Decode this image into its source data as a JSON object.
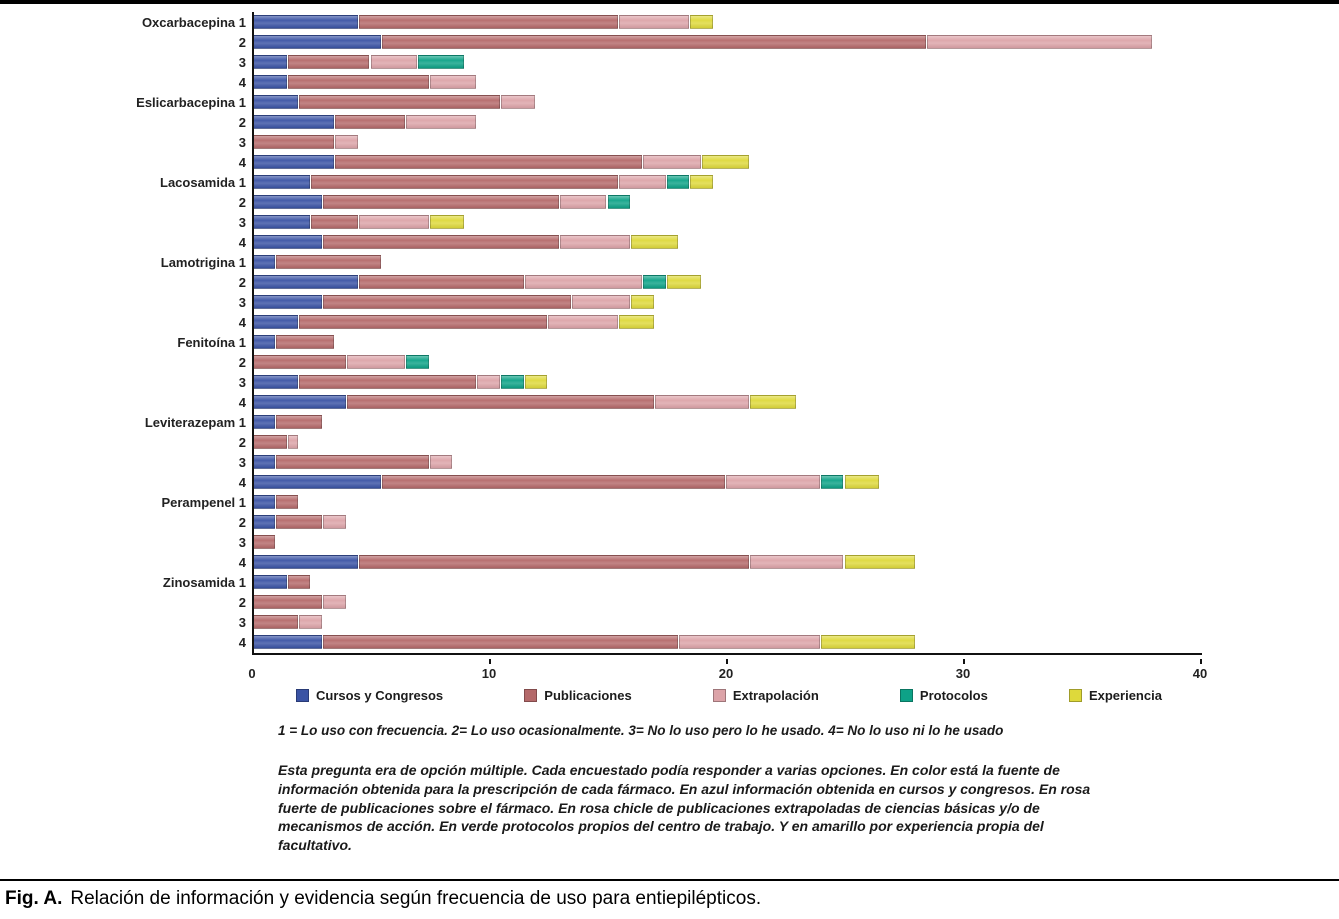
{
  "figure": {
    "caption_prefix": "Fig. A.",
    "caption_text": "Relación de información y evidencia según frecuencia de uso para entiepilépticos."
  },
  "footnotes": {
    "scale_note": "1 = Lo uso con frecuencia. 2= Lo uso ocasionalmente. 3= No lo uso pero lo he usado. 4= No lo uso ni lo he usado",
    "note_lines": [
      "Esta pregunta era de opción múltiple. Cada encuestado podía responder a varias opciones. En color está la fuente de",
      "información obtenida para la prescripción de cada fármaco. En azul información obtenida en cursos y congresos. En rosa",
      "fuerte de publicaciones sobre el fármaco. En rosa chicle de publicaciones extrapoladas de ciencias básicas y/o de",
      "mecanismos de acción. En verde protocolos propios del centro de trabajo. Y en amarillo por experiencia propia del",
      "facultativo."
    ]
  },
  "chart_data": {
    "type": "bar",
    "orientation": "horizontal-stacked",
    "title": "",
    "xlabel": "",
    "ylabel": "",
    "xlim": [
      0,
      40
    ],
    "x_ticks": [
      0,
      10,
      20,
      30,
      40
    ],
    "grid": false,
    "legend_position": "bottom",
    "row_scale_labels": [
      "1",
      "2",
      "3",
      "4"
    ],
    "legend": [
      {
        "key": "cursos",
        "label": "Cursos y Congresos",
        "color": "#3a53a4"
      },
      {
        "key": "publicaciones",
        "label": "Publicaciones",
        "color": "#b4696a"
      },
      {
        "key": "extrapolacion",
        "label": "Extrapolación",
        "color": "#dca3a8"
      },
      {
        "key": "protocolos",
        "label": "Protocolos",
        "color": "#0ea287"
      },
      {
        "key": "experiencia",
        "label": "Experiencia",
        "color": "#ded93b"
      }
    ],
    "groups": [
      {
        "drug": "Oxcarbacepina",
        "rows": [
          [
            4.5,
            11,
            3,
            0,
            1
          ],
          [
            5.5,
            23,
            9.5,
            0,
            0
          ],
          [
            1.5,
            3.5,
            2,
            2,
            0
          ],
          [
            1.5,
            6,
            2,
            0,
            0
          ]
        ]
      },
      {
        "drug": "Eslicarbacepina",
        "rows": [
          [
            2,
            8.5,
            1.5,
            0,
            0
          ],
          [
            3.5,
            3,
            3,
            0,
            0
          ],
          [
            0,
            3.5,
            1,
            0,
            0
          ],
          [
            3.5,
            13,
            2.5,
            0,
            2
          ]
        ]
      },
      {
        "drug": "Lacosamida",
        "rows": [
          [
            2.5,
            13,
            2,
            1,
            1
          ],
          [
            3,
            10,
            2,
            1,
            0
          ],
          [
            2.5,
            2,
            3,
            0,
            1.5
          ],
          [
            3,
            10,
            3,
            0,
            2
          ]
        ]
      },
      {
        "drug": "Lamotrigina",
        "rows": [
          [
            1,
            4.5,
            0,
            0,
            0
          ],
          [
            4.5,
            7,
            5,
            1,
            1.5
          ],
          [
            3,
            10.5,
            2.5,
            0,
            1
          ],
          [
            2,
            10.5,
            3,
            0,
            1.5
          ]
        ]
      },
      {
        "drug": "Fenitoína",
        "rows": [
          [
            1,
            2.5,
            0,
            0,
            0
          ],
          [
            0,
            4,
            2.5,
            1,
            0
          ],
          [
            2,
            7.5,
            1,
            1,
            1
          ],
          [
            4,
            13,
            4,
            0,
            2
          ]
        ]
      },
      {
        "drug": "Leviterazepam",
        "rows": [
          [
            1,
            2,
            0,
            0,
            0
          ],
          [
            0,
            1.5,
            0.5,
            0,
            0
          ],
          [
            1,
            6.5,
            1,
            0,
            0
          ],
          [
            5.5,
            14.5,
            4,
            1,
            1.5
          ]
        ]
      },
      {
        "drug": "Perampenel",
        "rows": [
          [
            1,
            1,
            0,
            0,
            0
          ],
          [
            1,
            2,
            1,
            0,
            0
          ],
          [
            0,
            1,
            0,
            0,
            0
          ],
          [
            4.5,
            16.5,
            4,
            0,
            3
          ]
        ]
      },
      {
        "drug": "Zinosamida",
        "rows": [
          [
            1.5,
            1,
            0,
            0,
            0
          ],
          [
            0,
            3,
            1,
            0,
            0
          ],
          [
            0,
            2,
            1,
            0,
            0
          ],
          [
            3,
            15,
            6,
            0,
            4
          ]
        ]
      }
    ]
  }
}
